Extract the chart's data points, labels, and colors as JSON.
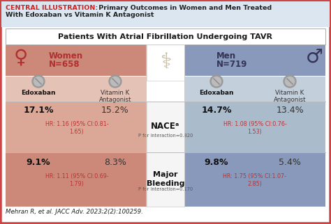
{
  "title_bold": "CENTRAL ILLUSTRATION:",
  "title_rest": " Primary Outcomes in Women and Men Treated\nWith Edoxaban vs Vitamin K Antagonist",
  "subtitle": "Patients With Atrial Fibrillation Undergoing TAVR",
  "nace_label": "NACEᵃ",
  "nace_p": "P for interaction=0.820",
  "bleeding_label": "Major\nBleeding",
  "bleeding_p": "P for interaction=0.170",
  "women_nace_edox": "17.1%",
  "women_nace_vitk": "15.2%",
  "women_nace_hr": "HR: 1.16 (95% CI:0.81-\n1.65)",
  "men_nace_edox": "14.7%",
  "men_nace_vitk": "13.4%",
  "men_nace_hr": "HR: 1.08 (95% CI:0.76-\n1.53)",
  "women_bleed_edox": "9.1%",
  "women_bleed_vitk": "8.3%",
  "women_bleed_hr": "HR: 1.11 (95% CI:0.69-\n1.79)",
  "men_bleed_edox": "9.8%",
  "men_bleed_vitk": "5.4%",
  "men_bleed_hr": "HR: 1.75 (95% CI:1.07-\n2.85)",
  "citation": "Mehran R, et al. JACC Adv. 2023;2(2):100259.",
  "header_bg": "#dce6f1",
  "women_color": "#b03030",
  "women_bg_dark": "#cc8878",
  "women_bg_light": "#dba898",
  "men_color": "#333355",
  "men_bg_dark": "#8899bb",
  "men_bg_light": "#aabbcc",
  "center_white": "#f5f5f5",
  "red_hr": "#bb3333",
  "title_red": "#cc2222",
  "border_color": "#cc4444",
  "outer_bg": "#f8f8f8"
}
